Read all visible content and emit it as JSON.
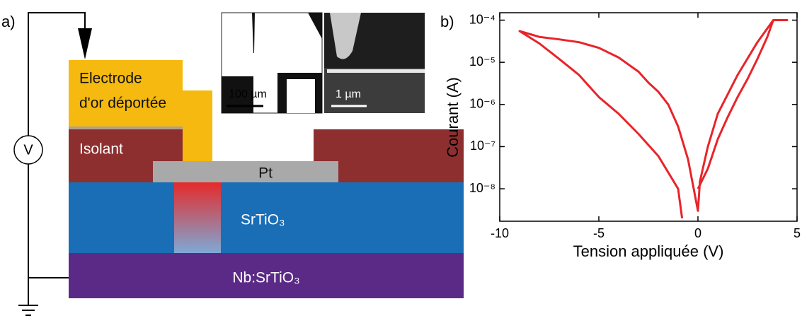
{
  "panel_a": {
    "label": "a)",
    "electrode_line1": "Electrode",
    "electrode_line2": "d'or déportée",
    "insulator": "Isolant",
    "top_contact": "Pt",
    "layer": "SrTiO₃",
    "substrate": "Nb:SrTiO₃",
    "meter": "V",
    "scale_bar_1": "100 µm",
    "scale_bar_2": "1 µm"
  },
  "chart_data": {
    "type": "line",
    "panel_label": "b)",
    "xlabel": "Tension appliquée (V)",
    "ylabel": "Courant (A)",
    "xlim": [
      -10,
      5
    ],
    "xticks": [
      -10,
      -5,
      0,
      5
    ],
    "ylim": [
      1.7e-09,
      0.00015
    ],
    "yticks": [
      {
        "value": 1e-08,
        "label": "10⁻⁸"
      },
      {
        "value": 1e-07,
        "label": "10⁻⁷"
      },
      {
        "value": 1e-06,
        "label": "10⁻⁶"
      },
      {
        "value": 1e-05,
        "label": "10⁻⁵"
      },
      {
        "value": 0.0001,
        "label": "10⁻⁴"
      }
    ],
    "log_y": true,
    "series": [
      {
        "color": "#e8242a",
        "x": [
          0,
          0.5,
          1,
          1.5,
          2,
          2.5,
          3,
          3.5,
          3.8,
          4.5,
          3.8,
          3,
          2,
          1,
          0.5,
          0.1,
          0,
          -0.5,
          -1,
          -1.5,
          -2,
          -2.5,
          -3,
          -4,
          -5,
          -6,
          -7,
          -8,
          -9,
          -8,
          -7,
          -6,
          -5,
          -4,
          -3,
          -2,
          -1,
          -0.8
        ],
        "values": [
          1e-08,
          3e-08,
          1.5e-07,
          5e-07,
          1.5e-06,
          4e-06,
          1.2e-05,
          4e-05,
          0.0001,
          0.0001,
          0.0001,
          3e-05,
          5e-06,
          6e-07,
          1e-07,
          1.5e-08,
          3e-09,
          5e-08,
          3e-07,
          1e-06,
          2e-06,
          3.3e-06,
          6e-06,
          1.3e-05,
          2.2e-05,
          3e-05,
          3.5e-05,
          4e-05,
          5.5e-05,
          2.8e-05,
          1.2e-05,
          5e-06,
          1.5e-06,
          6e-07,
          2e-07,
          6e-08,
          1e-08,
          2e-09
        ]
      }
    ]
  }
}
